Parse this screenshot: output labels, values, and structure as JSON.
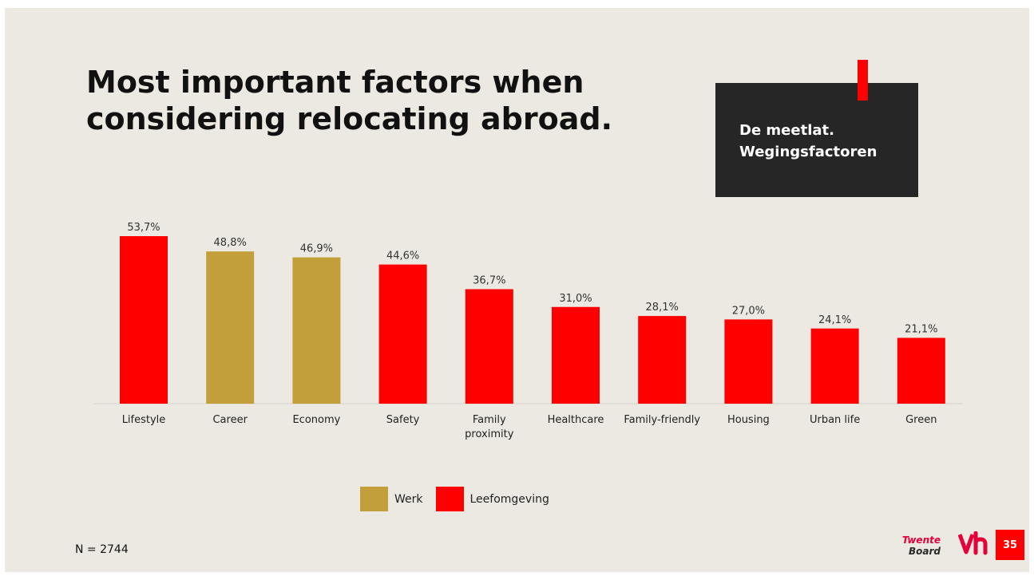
{
  "title": {
    "line1": "Most important factors when",
    "line2": "considering relocating abroad."
  },
  "tag": {
    "line1": "De meetlat.",
    "line2": "Wegingsfactoren"
  },
  "footnote": "N = 2744",
  "logo": {
    "line1": "Twente",
    "line2": "Board",
    "mark": "vh-logo-icon"
  },
  "page_number": "35",
  "colors": {
    "background": "#ebe9e1",
    "werk": "#c39f3b",
    "leefomgeving": "#ff0000",
    "tag_box": "#262626"
  },
  "chart_data": {
    "type": "bar",
    "title": "",
    "xlabel": "",
    "ylabel": "",
    "ylim": [
      0,
      60
    ],
    "grid": false,
    "legend_position": "bottom",
    "categories": [
      "Lifestyle",
      "Career",
      "Economy",
      "Safety",
      "Family proximity",
      "Healthcare",
      "Family-friendly",
      "Housing",
      "Urban life",
      "Green"
    ],
    "category_lines": [
      [
        "Lifestyle"
      ],
      [
        "Career"
      ],
      [
        "Economy"
      ],
      [
        "Safety"
      ],
      [
        "Family",
        "proximity"
      ],
      [
        "Healthcare"
      ],
      [
        "Family-friendly"
      ],
      [
        "Housing"
      ],
      [
        "Urban life"
      ],
      [
        "Green"
      ]
    ],
    "values": [
      53.7,
      48.8,
      46.9,
      44.6,
      36.7,
      31.0,
      28.1,
      27.0,
      24.1,
      21.1
    ],
    "value_labels": [
      "53,7%",
      "48,8%",
      "46,9%",
      "44,6%",
      "36,7%",
      "31,0%",
      "28,1%",
      "27,0%",
      "24,1%",
      "21,1%"
    ],
    "bar_group": [
      "Leefomgeving",
      "Werk",
      "Werk",
      "Leefomgeving",
      "Leefomgeving",
      "Leefomgeving",
      "Leefomgeving",
      "Leefomgeving",
      "Leefomgeving",
      "Leefomgeving"
    ],
    "legend": [
      {
        "name": "Werk",
        "color": "#c39f3b"
      },
      {
        "name": "Leefomgeving",
        "color": "#ff0000"
      }
    ]
  }
}
